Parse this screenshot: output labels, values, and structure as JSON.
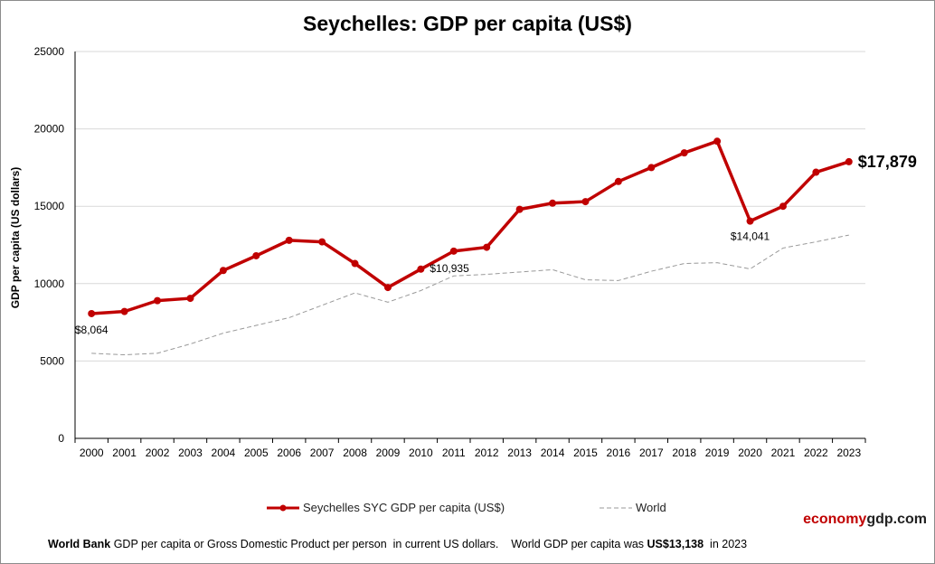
{
  "chart_data": {
    "type": "line",
    "title": "Seychelles:  GDP per capita (US$)",
    "ylabel": "GDP per capita (US dollars)",
    "xlabel": "",
    "ylim": [
      0,
      25000
    ],
    "yticks": [
      "0",
      "5000",
      "10000",
      "15000",
      "20000",
      "25000"
    ],
    "grid": true,
    "legend_position": "bottom",
    "categories": [
      "2000",
      "2001",
      "2002",
      "2003",
      "2004",
      "2005",
      "2006",
      "2007",
      "2008",
      "2009",
      "2010",
      "2011",
      "2012",
      "2013",
      "2014",
      "2015",
      "2016",
      "2017",
      "2018",
      "2019",
      "2020",
      "2021",
      "2022",
      "2023"
    ],
    "series": [
      {
        "name": "Seychelles SYC GDP per capita (US$)",
        "color": "#c00000",
        "values": [
          8064,
          8200,
          8900,
          9050,
          10850,
          11800,
          12800,
          12700,
          11300,
          9750,
          10935,
          12100,
          12350,
          14800,
          15200,
          15300,
          16600,
          17500,
          18450,
          19200,
          14041,
          15000,
          17200,
          17879
        ]
      },
      {
        "name": "World",
        "color": "#999999",
        "values": [
          5500,
          5400,
          5500,
          6100,
          6800,
          7300,
          7800,
          8600,
          9400,
          8800,
          9550,
          10500,
          10600,
          10750,
          10900,
          10250,
          10200,
          10800,
          11300,
          11350,
          10950,
          12300,
          12700,
          13138
        ]
      }
    ],
    "annotations": [
      {
        "index": 0,
        "label": "$8,064"
      },
      {
        "index": 10,
        "label": "$10,935"
      },
      {
        "index": 20,
        "label": "$14,041"
      },
      {
        "index": 23,
        "label": "$17,879"
      }
    ]
  },
  "brand": {
    "part1": "economy",
    "part2": "gdp.com"
  },
  "footnote": {
    "source_bold": "World Bank",
    "text1": " GDP per capita or Gross Domestic Product per person  in current US dollars.    World GDP per capita was ",
    "value_bold": "US$13,138",
    "text2": "  in 2023"
  }
}
